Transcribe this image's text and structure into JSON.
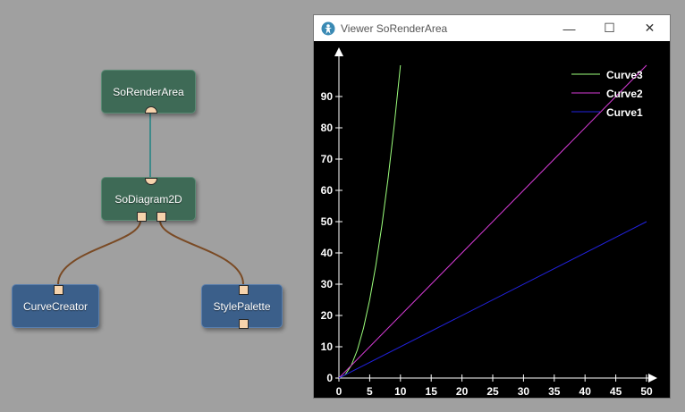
{
  "network": {
    "nodes": [
      {
        "id": "render",
        "label": "SoRenderArea"
      },
      {
        "id": "diagram",
        "label": "SoDiagram2D"
      },
      {
        "id": "curve",
        "label": "CurveCreator"
      },
      {
        "id": "style",
        "label": "StylePalette"
      }
    ]
  },
  "viewer": {
    "title": "Viewer SoRenderArea",
    "icon": "app-icon",
    "minimize_label": "—",
    "maximize_label": "☐",
    "close_label": "✕"
  },
  "chart_data": {
    "type": "line",
    "title": "",
    "xlabel": "",
    "ylabel": "",
    "xlim": [
      0,
      50
    ],
    "ylim": [
      0,
      100
    ],
    "x_ticks": [
      0,
      5,
      10,
      15,
      20,
      25,
      30,
      35,
      40,
      45,
      50
    ],
    "y_ticks": [
      0,
      10,
      20,
      30,
      40,
      50,
      60,
      70,
      80,
      90
    ],
    "legend_position": "top-right",
    "series": [
      {
        "name": "Curve3",
        "color": "#9cff7c",
        "x": [
          0,
          1,
          2,
          3,
          4,
          5,
          6,
          7,
          8,
          9,
          10
        ],
        "y": [
          0,
          1,
          4,
          9,
          16,
          25,
          36,
          49,
          64,
          81,
          100
        ]
      },
      {
        "name": "Curve2",
        "color": "#d83cd8",
        "x": [
          0,
          50
        ],
        "y": [
          0,
          100
        ]
      },
      {
        "name": "Curve1",
        "color": "#2222e0",
        "x": [
          0,
          50
        ],
        "y": [
          0,
          50
        ]
      }
    ]
  }
}
